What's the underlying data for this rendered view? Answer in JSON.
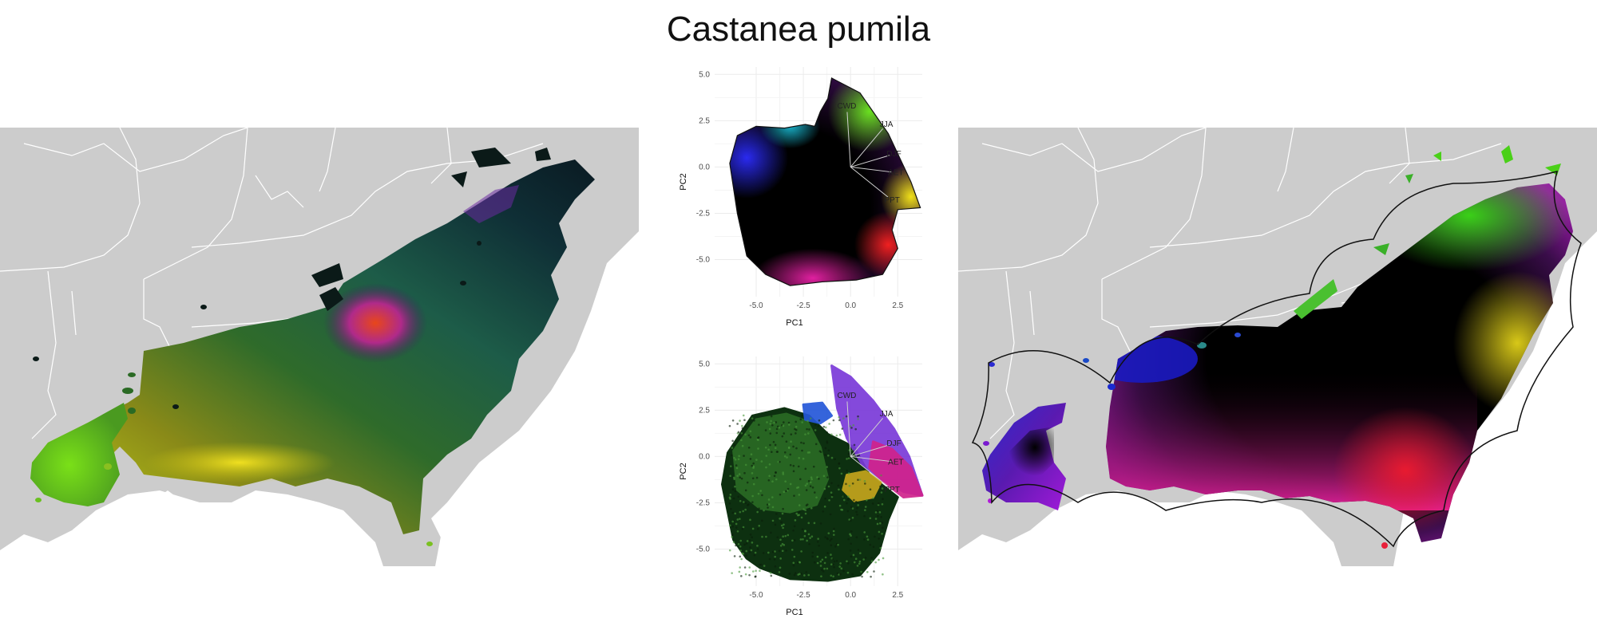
{
  "title": "Castanea pumila",
  "colors": {
    "land": "#cccccc",
    "state_border": "#ffffff",
    "grid": "#ebebeb",
    "outline": "#111111"
  },
  "chart_data": [
    {
      "type": "biplot",
      "panel": "environment-space",
      "xlabel": "PC1",
      "ylabel": "PC2",
      "xlim": [
        -7.2,
        3.8
      ],
      "ylim": [
        -7.0,
        5.4
      ],
      "xticks": [
        "-5.0",
        "-2.5",
        "0.0",
        "2.5"
      ],
      "xtick_values": [
        -5.0,
        -2.5,
        0.0,
        2.5
      ],
      "yticks": [
        "5.0",
        "2.5",
        "0.0",
        "-2.5",
        "-5.0"
      ],
      "ytick_values": [
        5.0,
        2.5,
        0.0,
        -2.5,
        -5.0
      ],
      "grid": true,
      "loadings": [
        {
          "label": "CWD",
          "x": -0.2,
          "y": 3.3
        },
        {
          "label": "JJA",
          "x": 1.9,
          "y": 2.3
        },
        {
          "label": "DJF",
          "x": 2.3,
          "y": 0.7
        },
        {
          "label": "AET",
          "x": 2.4,
          "y": -0.3
        },
        {
          "label": "PPT",
          "x": 2.2,
          "y": -1.8
        }
      ],
      "hull": [
        [
          -1.0,
          4.8
        ],
        [
          0.5,
          4.0
        ],
        [
          2.0,
          1.8
        ],
        [
          3.2,
          -0.8
        ],
        [
          3.7,
          -2.2
        ],
        [
          2.5,
          -2.3
        ],
        [
          2.2,
          -3.4
        ],
        [
          2.5,
          -4.4
        ],
        [
          1.7,
          -5.8
        ],
        [
          0.3,
          -6.1
        ],
        [
          -1.5,
          -6.2
        ],
        [
          -3.2,
          -6.4
        ],
        [
          -4.5,
          -5.8
        ],
        [
          -5.5,
          -4.8
        ],
        [
          -6.0,
          -2.5
        ],
        [
          -6.4,
          0.2
        ],
        [
          -6.0,
          1.7
        ],
        [
          -5.0,
          2.2
        ],
        [
          -3.5,
          2.1
        ],
        [
          -2.4,
          2.3
        ],
        [
          -1.9,
          2.2
        ],
        [
          -1.6,
          3.0
        ],
        [
          -1.2,
          3.7
        ],
        [
          -1.0,
          4.8
        ]
      ]
    },
    {
      "type": "biplot",
      "panel": "occurrence-points",
      "xlabel": "PC1",
      "ylabel": "PC2",
      "xlim": [
        -7.2,
        3.8
      ],
      "ylim": [
        -7.0,
        5.4
      ],
      "xticks": [
        "-5.0",
        "-2.5",
        "0.0",
        "2.5"
      ],
      "xtick_values": [
        -5.0,
        -2.5,
        0.0,
        2.5
      ],
      "yticks": [
        "5.0",
        "2.5",
        "0.0",
        "-2.5",
        "-5.0"
      ],
      "ytick_values": [
        5.0,
        2.5,
        0.0,
        -2.5,
        -5.0
      ],
      "grid": true,
      "loadings": [
        {
          "label": "CWD",
          "x": -0.2,
          "y": 3.3
        },
        {
          "label": "JJA",
          "x": 1.9,
          "y": 2.3
        },
        {
          "label": "DJF",
          "x": 2.3,
          "y": 0.7
        },
        {
          "label": "AET",
          "x": 2.4,
          "y": -0.3
        },
        {
          "label": "PPT",
          "x": 2.2,
          "y": -1.8
        }
      ],
      "point_clouds": [
        {
          "color": "#0d3010",
          "hull": [
            [
              -6.5,
              0.2
            ],
            [
              -5.2,
              2.2
            ],
            [
              -3.5,
              2.6
            ],
            [
              -2.2,
              2.2
            ],
            [
              -1.2,
              1.2
            ],
            [
              0.2,
              0.5
            ],
            [
              1.0,
              -1.0
            ],
            [
              2.5,
              -2.2
            ],
            [
              2.0,
              -3.4
            ],
            [
              1.5,
              -5.2
            ],
            [
              0.5,
              -6.4
            ],
            [
              -1.2,
              -6.7
            ],
            [
              -3.2,
              -6.6
            ],
            [
              -4.8,
              -6.0
            ],
            [
              -5.5,
              -5.5
            ],
            [
              -6.2,
              -4.5
            ],
            [
              -6.8,
              -1.5
            ]
          ]
        },
        {
          "color": "#2a6a24",
          "hull": [
            [
              -6.2,
              0.3
            ],
            [
              -5.0,
              2.0
            ],
            [
              -3.4,
              2.3
            ],
            [
              -2.3,
              1.9
            ],
            [
              -1.6,
              0.5
            ],
            [
              -1.2,
              -1.2
            ],
            [
              -1.8,
              -2.6
            ],
            [
              -3.2,
              -3.0
            ],
            [
              -4.8,
              -2.8
            ],
            [
              -6.0,
              -1.8
            ]
          ]
        },
        {
          "color": "#7a3ad8",
          "hull": [
            [
              -1.0,
              4.9
            ],
            [
              0.0,
              4.3
            ],
            [
              1.2,
              3.0
            ],
            [
              2.3,
              1.5
            ],
            [
              3.1,
              0.0
            ],
            [
              3.8,
              -2.1
            ],
            [
              2.8,
              -1.9
            ],
            [
              1.6,
              -1.2
            ],
            [
              0.6,
              -0.4
            ],
            [
              -0.2,
              1.0
            ],
            [
              -0.7,
              2.6
            ]
          ]
        },
        {
          "color": "#d0238c",
          "hull": [
            [
              1.2,
              0.8
            ],
            [
              2.2,
              0.4
            ],
            [
              3.2,
              -0.6
            ],
            [
              3.8,
              -2.1
            ],
            [
              2.8,
              -2.2
            ],
            [
              1.8,
              -1.4
            ],
            [
              1.0,
              -0.6
            ]
          ]
        },
        {
          "color": "#2457d8",
          "hull": [
            [
              -2.5,
              2.8
            ],
            [
              -1.5,
              2.9
            ],
            [
              -1.0,
              2.2
            ],
            [
              -1.6,
              1.8
            ],
            [
              -2.4,
              2.0
            ]
          ]
        },
        {
          "color": "#c4a51c",
          "hull": [
            [
              -0.2,
              -1.0
            ],
            [
              0.8,
              -0.8
            ],
            [
              1.6,
              -1.4
            ],
            [
              1.2,
              -2.2
            ],
            [
              0.2,
              -2.4
            ],
            [
              -0.4,
              -1.8
            ]
          ]
        }
      ]
    }
  ],
  "maps": {
    "left_name": "map-climate-colored",
    "right_name": "map-pca-colored"
  }
}
